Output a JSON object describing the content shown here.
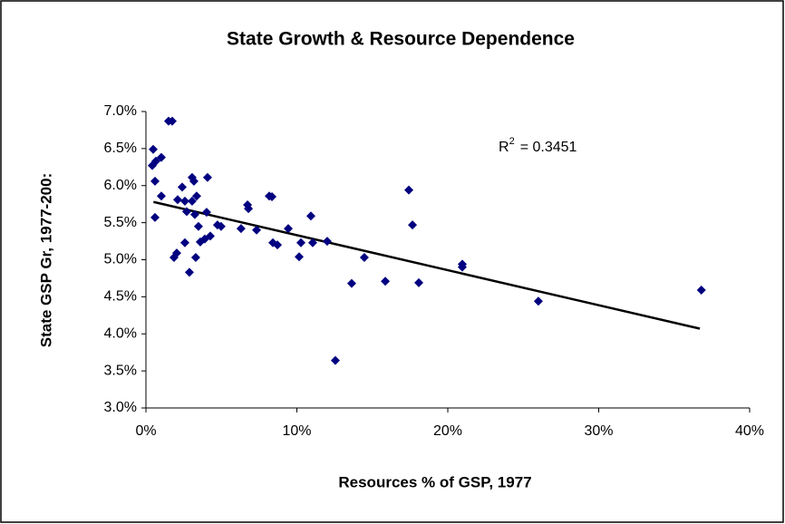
{
  "chart_data": {
    "type": "scatter",
    "title": "State Growth & Resource Dependence",
    "x_label": "Resources % of GSP, 1977",
    "y_label": "State GSP Gr, 1977-200:",
    "annotation": {
      "base": "R",
      "sup": "2",
      "text": "= 0.3451"
    },
    "xlim": [
      0,
      40
    ],
    "xticks": [
      {
        "value": 0,
        "label": "0%"
      },
      {
        "value": 10,
        "label": "10%"
      },
      {
        "value": 20,
        "label": "20%"
      },
      {
        "value": 30,
        "label": "30%"
      },
      {
        "value": 40,
        "label": "40%"
      }
    ],
    "ylim": [
      3,
      7
    ],
    "yticks": [
      {
        "value": 3,
        "label": "3.0%"
      },
      {
        "value": 3.5,
        "label": "3.5%"
      },
      {
        "value": 4,
        "label": "4.0%"
      },
      {
        "value": 4.5,
        "label": "4.5%"
      },
      {
        "value": 5,
        "label": "5.0%"
      },
      {
        "value": 5.5,
        "label": "5.5%"
      },
      {
        "value": 6,
        "label": "6.0%"
      },
      {
        "value": 6.5,
        "label": "6.5%"
      },
      {
        "value": 7,
        "label": "7.0%"
      }
    ],
    "grid": false,
    "series": [
      {
        "color": "#000080",
        "x": [
          0.48,
          0.42,
          0.66,
          1.02,
          0.6,
          0.6,
          1.02,
          1.5,
          1.74,
          1.86,
          2.04,
          2.1,
          2.4,
          2.58,
          2.7,
          2.58,
          2.88,
          3.06,
          3.18,
          3.06,
          3.36,
          3.24,
          3.3,
          3.48,
          3.6,
          4.08,
          4.02,
          3.9,
          4.26,
          4.74,
          4.98,
          6.3,
          6.73,
          6.79,
          7.33,
          8.17,
          8.35,
          8.41,
          8.71,
          9.43,
          10.15,
          10.27,
          10.93,
          11.05,
          12.01,
          12.55,
          13.63,
          14.47,
          15.86,
          17.42,
          17.66,
          18.08,
          20.96,
          20.96,
          26.0,
          36.8
        ],
        "values": [
          6.49,
          6.27,
          6.33,
          6.38,
          6.06,
          5.57,
          5.86,
          6.87,
          6.87,
          5.03,
          5.09,
          5.81,
          5.98,
          5.79,
          5.65,
          5.23,
          4.83,
          6.11,
          6.06,
          5.79,
          5.86,
          5.61,
          5.03,
          5.45,
          5.24,
          6.11,
          5.64,
          5.28,
          5.32,
          5.47,
          5.45,
          5.42,
          5.74,
          5.69,
          5.4,
          5.86,
          5.85,
          5.23,
          5.2,
          5.42,
          5.04,
          5.23,
          5.59,
          5.23,
          5.25,
          3.64,
          4.68,
          5.03,
          4.71,
          5.94,
          5.47,
          4.69,
          4.94,
          4.9,
          4.44,
          4.59
        ]
      }
    ],
    "trendline": {
      "color": "#000000",
      "x": [
        0.5,
        36.7
      ],
      "values": [
        5.78,
        4.07
      ]
    }
  }
}
